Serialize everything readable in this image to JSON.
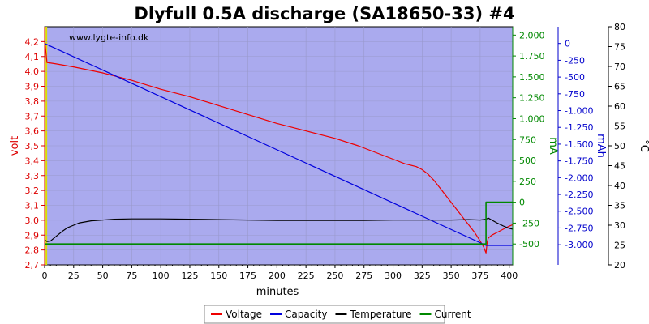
{
  "chart_data": {
    "type": "line",
    "title": "Dlyfull 0.5A discharge (SA18650-33) #4",
    "watermark": "www.lygte-info.dk",
    "xlabel": "minutes",
    "xlim": [
      0,
      403
    ],
    "x_ticks": [
      0,
      25,
      50,
      75,
      100,
      125,
      150,
      175,
      200,
      225,
      250,
      275,
      300,
      325,
      350,
      375,
      400
    ],
    "grid": true,
    "plot_background": "#aaaaee",
    "axes": {
      "volt": {
        "label": "volt",
        "color": "#dd0000",
        "ylim": [
          2.7,
          4.3
        ],
        "ticks": [
          "2,7",
          "2,8",
          "2,9",
          "3,0",
          "3,1",
          "3,2",
          "3,3",
          "3,4",
          "3,5",
          "3,6",
          "3,7",
          "3,8",
          "3,9",
          "4,0",
          "4,1",
          "4,2"
        ],
        "tick_values": [
          2.7,
          2.8,
          2.9,
          3.0,
          3.1,
          3.2,
          3.3,
          3.4,
          3.5,
          3.6,
          3.7,
          3.8,
          3.9,
          4.0,
          4.1,
          4.2
        ]
      },
      "ma": {
        "label": "mA",
        "color": "#008800",
        "ylim": [
          -750,
          2100
        ],
        "ticks": [
          "-500",
          "-250",
          "0",
          "250",
          "500",
          "750",
          "1.000",
          "1.250",
          "1.500",
          "1.750",
          "2.000"
        ],
        "tick_values": [
          -500,
          -250,
          0,
          250,
          500,
          750,
          1000,
          1250,
          1500,
          1750,
          2000
        ]
      },
      "mah": {
        "label": "mAh",
        "color": "#0000cc",
        "ylim": [
          -3300,
          250
        ],
        "ticks": [
          "-3.000",
          "-2.750",
          "-2.500",
          "-2.250",
          "-2.000",
          "-1.750",
          "-1.500",
          "-1.250",
          "-1.000",
          "-750",
          "-500",
          "-250",
          "0"
        ],
        "tick_values": [
          -3000,
          -2750,
          -2500,
          -2250,
          -2000,
          -1750,
          -1500,
          -1250,
          -1000,
          -750,
          -500,
          -250,
          0
        ]
      },
      "temp": {
        "label": "°C",
        "color": "#000000",
        "ylim": [
          20,
          80
        ],
        "ticks": [
          "20",
          "25",
          "30",
          "35",
          "40",
          "45",
          "50",
          "55",
          "60",
          "65",
          "70",
          "75",
          "80"
        ],
        "tick_values": [
          20,
          25,
          30,
          35,
          40,
          45,
          50,
          55,
          60,
          65,
          70,
          75,
          80
        ]
      }
    },
    "series": [
      {
        "name": "Voltage",
        "axis": "volt",
        "color": "#ee0000",
        "x": [
          0,
          2,
          10,
          25,
          50,
          75,
          100,
          125,
          150,
          175,
          200,
          225,
          250,
          270,
          290,
          300,
          310,
          320,
          325,
          330,
          335,
          340,
          345,
          350,
          355,
          360,
          365,
          370,
          375,
          378,
          380,
          381,
          382,
          385,
          390,
          395,
          400,
          403
        ],
        "y": [
          4.21,
          4.06,
          4.05,
          4.03,
          3.99,
          3.94,
          3.88,
          3.83,
          3.77,
          3.71,
          3.65,
          3.6,
          3.55,
          3.5,
          3.44,
          3.41,
          3.38,
          3.36,
          3.34,
          3.31,
          3.27,
          3.22,
          3.17,
          3.12,
          3.07,
          3.02,
          2.97,
          2.92,
          2.86,
          2.82,
          2.78,
          2.85,
          2.88,
          2.9,
          2.92,
          2.94,
          2.96,
          2.97
        ]
      },
      {
        "name": "Capacity",
        "axis": "mah",
        "color": "#0000dd",
        "x": [
          0,
          380,
          381,
          403
        ],
        "y": [
          0,
          -3010,
          -3010,
          -3010
        ]
      },
      {
        "name": "Temperature",
        "axis": "temp",
        "color": "#000000",
        "x": [
          0,
          2,
          5,
          10,
          15,
          20,
          25,
          30,
          40,
          50,
          60,
          75,
          100,
          125,
          150,
          175,
          200,
          225,
          250,
          275,
          300,
          325,
          350,
          365,
          375,
          380,
          382,
          385,
          390,
          395,
          400,
          403
        ],
        "y": [
          26.3,
          25.9,
          26.0,
          27.2,
          28.4,
          29.4,
          30.0,
          30.6,
          31.1,
          31.3,
          31.5,
          31.6,
          31.6,
          31.5,
          31.4,
          31.3,
          31.2,
          31.2,
          31.2,
          31.2,
          31.3,
          31.3,
          31.3,
          31.4,
          31.3,
          31.5,
          31.8,
          31.3,
          30.5,
          29.8,
          29.2,
          29.0
        ]
      },
      {
        "name": "Current",
        "axis": "ma",
        "color": "#008800",
        "x": [
          0,
          380,
          380,
          403
        ],
        "y": [
          -500,
          -500,
          0,
          0
        ]
      }
    ],
    "legend": {
      "position": "bottom-center",
      "entries": [
        "Voltage",
        "Capacity",
        "Temperature",
        "Current"
      ]
    }
  }
}
